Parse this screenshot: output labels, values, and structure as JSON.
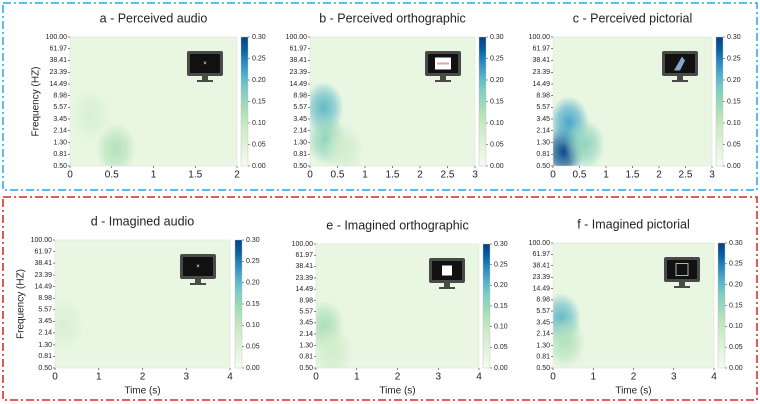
{
  "chart_data": [
    {
      "type": "heatmap",
      "title": "a - Perceived audio",
      "ylabel": "Frequency (HZ)",
      "xlim": [
        0,
        2
      ],
      "xticks": [
        0,
        0.5,
        1,
        1.5,
        2
      ],
      "ylim": [
        0.5,
        100
      ],
      "log_y": true,
      "yticks": [
        {
          "value": 0.5,
          "label": "0.50"
        },
        {
          "value": 0.81,
          "label": "0.81"
        },
        {
          "value": 1.3,
          "label": "1.30"
        },
        {
          "value": 2.14,
          "label": "2.14"
        },
        {
          "value": 3.45,
          "label": "3.45"
        },
        {
          "value": 5.57,
          "label": "5.57"
        },
        {
          "value": 8.98,
          "label": "8.98"
        },
        {
          "value": 14.49,
          "label": "14.49"
        },
        {
          "value": 23.39,
          "label": "23.39"
        },
        {
          "value": 38.41,
          "label": "38.41"
        },
        {
          "value": 61.97,
          "label": "61.97"
        },
        {
          "value": 100,
          "label": "100.00"
        }
      ],
      "clim": [
        0,
        0.3
      ],
      "cticks": [
        {
          "value": 0,
          "label": "0.00"
        },
        {
          "value": 0.05,
          "label": "0.05"
        },
        {
          "value": 0.1,
          "label": "0.10"
        },
        {
          "value": 0.15,
          "label": "0.15"
        },
        {
          "value": 0.2,
          "label": "0.20"
        },
        {
          "value": 0.25,
          "label": "0.25"
        },
        {
          "value": 0.3,
          "label": "0.30"
        }
      ],
      "background": 0.03,
      "peaks": [
        {
          "x": 0.55,
          "y": 1.0,
          "value": 0.12
        },
        {
          "x": 0.25,
          "y": 4,
          "value": 0.06
        }
      ]
    },
    {
      "type": "heatmap",
      "title": "b - Perceived orthographic",
      "xlim": [
        0,
        3
      ],
      "xticks": [
        0,
        0.5,
        1,
        1.5,
        2,
        2.5,
        3
      ],
      "ylim": [
        0.5,
        100
      ],
      "log_y": true,
      "yticks": [
        {
          "value": 0.5,
          "label": "0.50"
        },
        {
          "value": 0.81,
          "label": "0.81"
        },
        {
          "value": 1.3,
          "label": "1.30"
        },
        {
          "value": 2.14,
          "label": "2.14"
        },
        {
          "value": 3.45,
          "label": "3.45"
        },
        {
          "value": 5.57,
          "label": "5.57"
        },
        {
          "value": 8.98,
          "label": "8.98"
        },
        {
          "value": 14.49,
          "label": "14.49"
        },
        {
          "value": 23.39,
          "label": "23.39"
        },
        {
          "value": 38.41,
          "label": "38.41"
        },
        {
          "value": 61.97,
          "label": "61.97"
        },
        {
          "value": 100,
          "label": "100.00"
        }
      ],
      "clim": [
        0,
        0.3
      ],
      "cticks": [
        {
          "value": 0,
          "label": "0.00"
        },
        {
          "value": 0.05,
          "label": "0.05"
        },
        {
          "value": 0.1,
          "label": "0.10"
        },
        {
          "value": 0.15,
          "label": "0.15"
        },
        {
          "value": 0.2,
          "label": "0.20"
        },
        {
          "value": 0.25,
          "label": "0.25"
        },
        {
          "value": 0.3,
          "label": "0.30"
        }
      ],
      "background": 0.03,
      "peaks": [
        {
          "x": 0.25,
          "y": 5.5,
          "value": 0.2
        },
        {
          "x": 0.3,
          "y": 1.5,
          "value": 0.16
        },
        {
          "x": 0.6,
          "y": 1.0,
          "value": 0.08
        }
      ]
    },
    {
      "type": "heatmap",
      "title": "c - Perceived pictorial",
      "xlim": [
        0,
        3
      ],
      "xticks": [
        0,
        0.5,
        1,
        1.5,
        2,
        2.5,
        3
      ],
      "ylim": [
        0.5,
        100
      ],
      "log_y": true,
      "yticks": [
        {
          "value": 0.5,
          "label": "0.50"
        },
        {
          "value": 0.81,
          "label": "0.81"
        },
        {
          "value": 1.3,
          "label": "1.30"
        },
        {
          "value": 2.14,
          "label": "2.14"
        },
        {
          "value": 3.45,
          "label": "3.45"
        },
        {
          "value": 5.57,
          "label": "5.57"
        },
        {
          "value": 8.98,
          "label": "8.98"
        },
        {
          "value": 14.49,
          "label": "14.49"
        },
        {
          "value": 23.39,
          "label": "23.39"
        },
        {
          "value": 38.41,
          "label": "38.41"
        },
        {
          "value": 61.97,
          "label": "61.97"
        },
        {
          "value": 100,
          "label": "100.00"
        }
      ],
      "clim": [
        0,
        0.3
      ],
      "cticks": [
        {
          "value": 0,
          "label": "0.00"
        },
        {
          "value": 0.05,
          "label": "0.05"
        },
        {
          "value": 0.1,
          "label": "0.10"
        },
        {
          "value": 0.15,
          "label": "0.15"
        },
        {
          "value": 0.2,
          "label": "0.20"
        },
        {
          "value": 0.25,
          "label": "0.25"
        },
        {
          "value": 0.3,
          "label": "0.30"
        }
      ],
      "background": 0.03,
      "peaks": [
        {
          "x": 0.2,
          "y": 0.9,
          "value": 0.29
        },
        {
          "x": 0.3,
          "y": 3,
          "value": 0.22
        },
        {
          "x": 0.6,
          "y": 1.2,
          "value": 0.16
        }
      ]
    },
    {
      "type": "heatmap",
      "title": "d - Imagined audio",
      "ylabel": "Frequency (HZ)",
      "xlabel": "Time (s)",
      "xlim": [
        0,
        4
      ],
      "xticks": [
        0,
        1,
        2,
        3,
        4
      ],
      "ylim": [
        0.5,
        100
      ],
      "log_y": true,
      "yticks": [
        {
          "value": 0.5,
          "label": "0.50"
        },
        {
          "value": 0.81,
          "label": "0.81"
        },
        {
          "value": 1.3,
          "label": "1.30"
        },
        {
          "value": 2.14,
          "label": "2.14"
        },
        {
          "value": 3.45,
          "label": "3.45"
        },
        {
          "value": 5.57,
          "label": "5.57"
        },
        {
          "value": 8.98,
          "label": "8.98"
        },
        {
          "value": 14.49,
          "label": "14.49"
        },
        {
          "value": 23.39,
          "label": "23.39"
        },
        {
          "value": 38.41,
          "label": "38.41"
        },
        {
          "value": 61.97,
          "label": "61.97"
        },
        {
          "value": 100,
          "label": "100.00"
        }
      ],
      "clim": [
        0,
        0.3
      ],
      "cticks": [
        {
          "value": 0,
          "label": "0.00"
        },
        {
          "value": 0.05,
          "label": "0.05"
        },
        {
          "value": 0.1,
          "label": "0.10"
        },
        {
          "value": 0.15,
          "label": "0.15"
        },
        {
          "value": 0.2,
          "label": "0.20"
        },
        {
          "value": 0.25,
          "label": "0.25"
        },
        {
          "value": 0.3,
          "label": "0.30"
        }
      ],
      "background": 0.03,
      "peaks": [
        {
          "x": 0.2,
          "y": 3,
          "value": 0.06
        }
      ]
    },
    {
      "type": "heatmap",
      "title": "e - Imagined orthographic",
      "xlabel": "Time (s)",
      "xlim": [
        0,
        4
      ],
      "xticks": [
        0,
        1,
        2,
        3,
        4
      ],
      "ylim": [
        0.5,
        100
      ],
      "log_y": true,
      "yticks": [
        {
          "value": 0.5,
          "label": "0.50"
        },
        {
          "value": 0.81,
          "label": "0.81"
        },
        {
          "value": 1.3,
          "label": "1.30"
        },
        {
          "value": 2.14,
          "label": "2.14"
        },
        {
          "value": 3.45,
          "label": "3.45"
        },
        {
          "value": 5.57,
          "label": "5.57"
        },
        {
          "value": 8.98,
          "label": "8.98"
        },
        {
          "value": 14.49,
          "label": "14.49"
        },
        {
          "value": 23.39,
          "label": "23.39"
        },
        {
          "value": 38.41,
          "label": "38.41"
        },
        {
          "value": 61.97,
          "label": "61.97"
        },
        {
          "value": 100,
          "label": "100.00"
        }
      ],
      "clim": [
        0,
        0.3
      ],
      "cticks": [
        {
          "value": 0,
          "label": "0.00"
        },
        {
          "value": 0.05,
          "label": "0.05"
        },
        {
          "value": 0.1,
          "label": "0.10"
        },
        {
          "value": 0.15,
          "label": "0.15"
        },
        {
          "value": 0.2,
          "label": "0.20"
        },
        {
          "value": 0.25,
          "label": "0.25"
        },
        {
          "value": 0.3,
          "label": "0.30"
        }
      ],
      "background": 0.03,
      "peaks": [
        {
          "x": 0.2,
          "y": 3,
          "value": 0.13
        },
        {
          "x": 0.4,
          "y": 1.0,
          "value": 0.08
        }
      ]
    },
    {
      "type": "heatmap",
      "title": "f - Imagined pictorial",
      "xlabel": "Time (s)",
      "xlim": [
        0,
        4
      ],
      "xticks": [
        0,
        1,
        2,
        3,
        4
      ],
      "ylim": [
        0.5,
        100
      ],
      "log_y": true,
      "yticks": [
        {
          "value": 0.5,
          "label": "0.50"
        },
        {
          "value": 0.81,
          "label": "0.81"
        },
        {
          "value": 1.3,
          "label": "1.30"
        },
        {
          "value": 2.14,
          "label": "2.14"
        },
        {
          "value": 3.45,
          "label": "3.45"
        },
        {
          "value": 5.57,
          "label": "5.57"
        },
        {
          "value": 8.98,
          "label": "8.98"
        },
        {
          "value": 14.49,
          "label": "14.49"
        },
        {
          "value": 23.39,
          "label": "23.39"
        },
        {
          "value": 38.41,
          "label": "38.41"
        },
        {
          "value": 61.97,
          "label": "61.97"
        },
        {
          "value": 100,
          "label": "100.00"
        }
      ],
      "clim": [
        0,
        0.3
      ],
      "cticks": [
        {
          "value": 0,
          "label": "0.00"
        },
        {
          "value": 0.05,
          "label": "0.05"
        },
        {
          "value": 0.1,
          "label": "0.10"
        },
        {
          "value": 0.15,
          "label": "0.15"
        },
        {
          "value": 0.2,
          "label": "0.20"
        },
        {
          "value": 0.25,
          "label": "0.25"
        },
        {
          "value": 0.3,
          "label": "0.30"
        }
      ],
      "background": 0.03,
      "peaks": [
        {
          "x": 0.2,
          "y": 4,
          "value": 0.2
        },
        {
          "x": 0.3,
          "y": 1.5,
          "value": 0.12
        }
      ]
    }
  ]
}
